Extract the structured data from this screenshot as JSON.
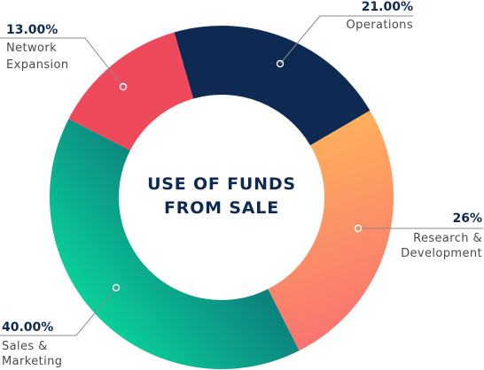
{
  "chart_data": {
    "type": "pie",
    "title": "USE OF FUNDS FROM SALE",
    "title_lines": [
      "USE OF FUNDS",
      "FROM SALE"
    ],
    "legend": "none",
    "slices": [
      {
        "key": "operations",
        "value": 21,
        "value_label": "21.00%",
        "label_lines": [
          "Operations"
        ],
        "color_start": "#0e2a52",
        "color_end": "#0e2a52"
      },
      {
        "key": "research",
        "value": 26,
        "value_label": "26%",
        "label_lines": [
          "Research &",
          "Development"
        ],
        "color_start": "#ffb65a",
        "color_end": "#f86f72"
      },
      {
        "key": "sales",
        "value": 40,
        "value_label": "40.00%",
        "label_lines": [
          "Sales &",
          "Marketing"
        ],
        "color_start": "#0ad39b",
        "color_end": "#0e4467"
      },
      {
        "key": "network",
        "value": 13,
        "value_label": "13.00%",
        "label_lines": [
          "Network",
          "Expansion"
        ],
        "color_start": "#ee4a5c",
        "color_end": "#ee4a5c"
      }
    ]
  }
}
